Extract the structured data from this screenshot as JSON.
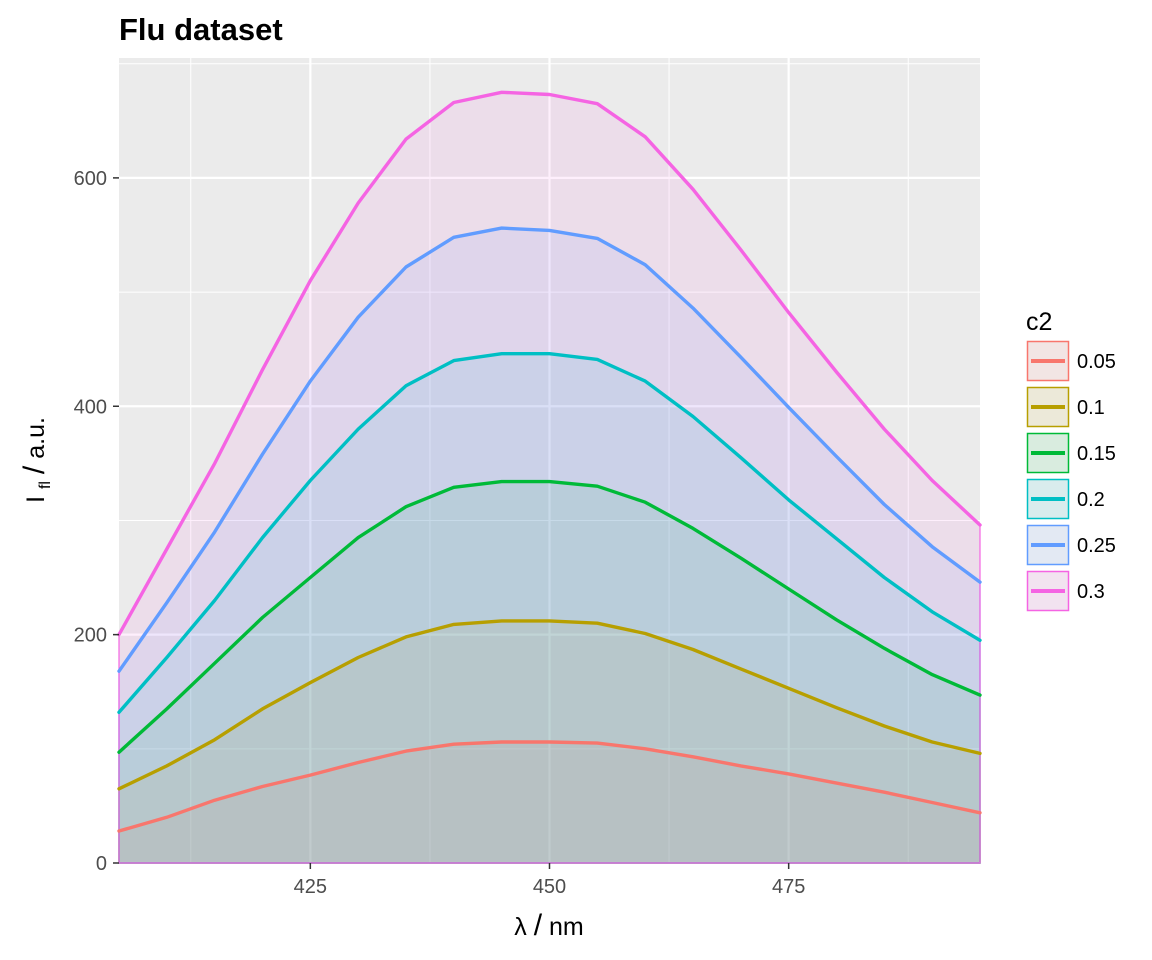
{
  "chart_data": {
    "type": "area",
    "title": "Flu dataset",
    "xlabel": {
      "main": "λ",
      "slash": "/",
      "unit": "nm"
    },
    "ylabel": {
      "main": "I",
      "sub": "fl",
      "slash": "/",
      "unit": "a.u."
    },
    "xlim": [
      405,
      495
    ],
    "ylim": [
      0,
      705
    ],
    "x_ticks": [
      425,
      450,
      475
    ],
    "y_ticks": [
      0,
      200,
      400,
      600
    ],
    "x_minor_ticks": [
      412.5,
      437.5,
      462.5,
      487.5
    ],
    "y_minor_ticks": [
      100,
      300,
      500,
      700
    ],
    "grid": true,
    "legend_title": "c2",
    "legend_position": "right",
    "series": [
      {
        "name": "0.05",
        "color": "#F8766D",
        "x": [
          405,
          410,
          415,
          420,
          425,
          430,
          435,
          440,
          445,
          450,
          455,
          460,
          465,
          470,
          475,
          480,
          485,
          490,
          495
        ],
        "y": [
          28,
          40,
          55,
          67,
          77,
          88,
          98,
          104,
          106,
          106,
          105,
          100,
          93,
          85,
          78,
          70,
          62,
          53,
          44
        ]
      },
      {
        "name": "0.1",
        "color": "#B79F00",
        "x": [
          405,
          410,
          415,
          420,
          425,
          430,
          435,
          440,
          445,
          450,
          455,
          460,
          465,
          470,
          475,
          480,
          485,
          490,
          495
        ],
        "y": [
          65,
          85,
          108,
          135,
          158,
          180,
          198,
          209,
          212,
          212,
          210,
          201,
          187,
          170,
          153,
          136,
          120,
          106,
          96
        ]
      },
      {
        "name": "0.15",
        "color": "#00BA38",
        "x": [
          405,
          410,
          415,
          420,
          425,
          430,
          435,
          440,
          445,
          450,
          455,
          460,
          465,
          470,
          475,
          480,
          485,
          490,
          495
        ],
        "y": [
          97,
          135,
          175,
          215,
          250,
          285,
          312,
          329,
          334,
          334,
          330,
          316,
          293,
          267,
          240,
          213,
          188,
          165,
          147
        ]
      },
      {
        "name": "0.2",
        "color": "#00BFC4",
        "x": [
          405,
          410,
          415,
          420,
          425,
          430,
          435,
          440,
          445,
          450,
          455,
          460,
          465,
          470,
          475,
          480,
          485,
          490,
          495
        ],
        "y": [
          132,
          180,
          230,
          285,
          335,
          380,
          418,
          440,
          446,
          446,
          441,
          422,
          391,
          355,
          318,
          284,
          250,
          220,
          195
        ]
      },
      {
        "name": "0.25",
        "color": "#619CFF",
        "x": [
          405,
          410,
          415,
          420,
          425,
          430,
          435,
          440,
          445,
          450,
          455,
          460,
          465,
          470,
          475,
          480,
          485,
          490,
          495
        ],
        "y": [
          168,
          228,
          290,
          358,
          422,
          478,
          522,
          548,
          556,
          554,
          547,
          524,
          486,
          443,
          399,
          356,
          314,
          277,
          246
        ]
      },
      {
        "name": "0.3",
        "color": "#F564E3",
        "x": [
          405,
          410,
          415,
          420,
          425,
          430,
          435,
          440,
          445,
          450,
          455,
          460,
          465,
          470,
          475,
          480,
          485,
          490,
          495
        ],
        "y": [
          200,
          275,
          350,
          432,
          510,
          578,
          634,
          666,
          675,
          673,
          665,
          636,
          590,
          537,
          482,
          430,
          380,
          335,
          296
        ]
      }
    ]
  }
}
